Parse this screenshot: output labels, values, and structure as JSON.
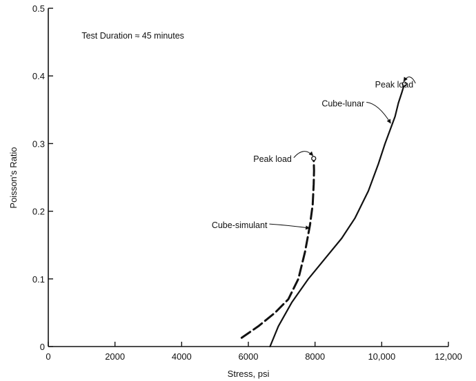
{
  "chart_data": {
    "type": "line",
    "title": "",
    "xlabel": "Stress, psi",
    "ylabel": "Poisson's Ratio",
    "xlim": [
      0,
      12000
    ],
    "ylim": [
      0,
      0.5
    ],
    "x_ticks": [
      0,
      2000,
      4000,
      6000,
      8000,
      10000,
      12000
    ],
    "x_tick_labels": [
      "0",
      "2000",
      "4000",
      "6000",
      "8000",
      "10,000",
      "12,000"
    ],
    "y_ticks": [
      0,
      0.1,
      0.2,
      0.3,
      0.4,
      0.5
    ],
    "y_tick_labels": [
      "0",
      "0.1",
      "0.2",
      "0.3",
      "0.4",
      "0.5"
    ],
    "grid": false,
    "legend": "none",
    "series": [
      {
        "name": "Cube-lunar",
        "style": "solid",
        "x": [
          6650,
          6900,
          7300,
          7800,
          8300,
          8800,
          9200,
          9600,
          9900,
          10100,
          10250,
          10400,
          10500,
          10600,
          10680
        ],
        "y": [
          0.0,
          0.03,
          0.065,
          0.1,
          0.13,
          0.16,
          0.19,
          0.23,
          0.27,
          0.3,
          0.32,
          0.34,
          0.36,
          0.375,
          0.388
        ]
      },
      {
        "name": "Cube-simulant",
        "style": "dashed",
        "x": [
          5800,
          6300,
          6800,
          7200,
          7500,
          7700,
          7850,
          7930,
          7960,
          7970,
          7960
        ],
        "y": [
          0.013,
          0.03,
          0.05,
          0.07,
          0.1,
          0.14,
          0.18,
          0.21,
          0.24,
          0.26,
          0.278
        ]
      }
    ],
    "annotations": [
      {
        "text": "Test Duration ≈ 45 minutes",
        "x": 1000,
        "y": 0.455
      },
      {
        "text": "Peak load",
        "x": 9800,
        "y": 0.383,
        "target_x": 10680,
        "target_y": 0.388
      },
      {
        "text": "Cube-lunar",
        "x": 8200,
        "y": 0.355,
        "target_x": 10330,
        "target_y": 0.33
      },
      {
        "text": "Peak load",
        "x": 6150,
        "y": 0.273,
        "target_x": 7960,
        "target_y": 0.278
      },
      {
        "text": "Cube-simulant",
        "x": 4900,
        "y": 0.175,
        "target_x": 7900,
        "target_y": 0.175
      }
    ]
  }
}
